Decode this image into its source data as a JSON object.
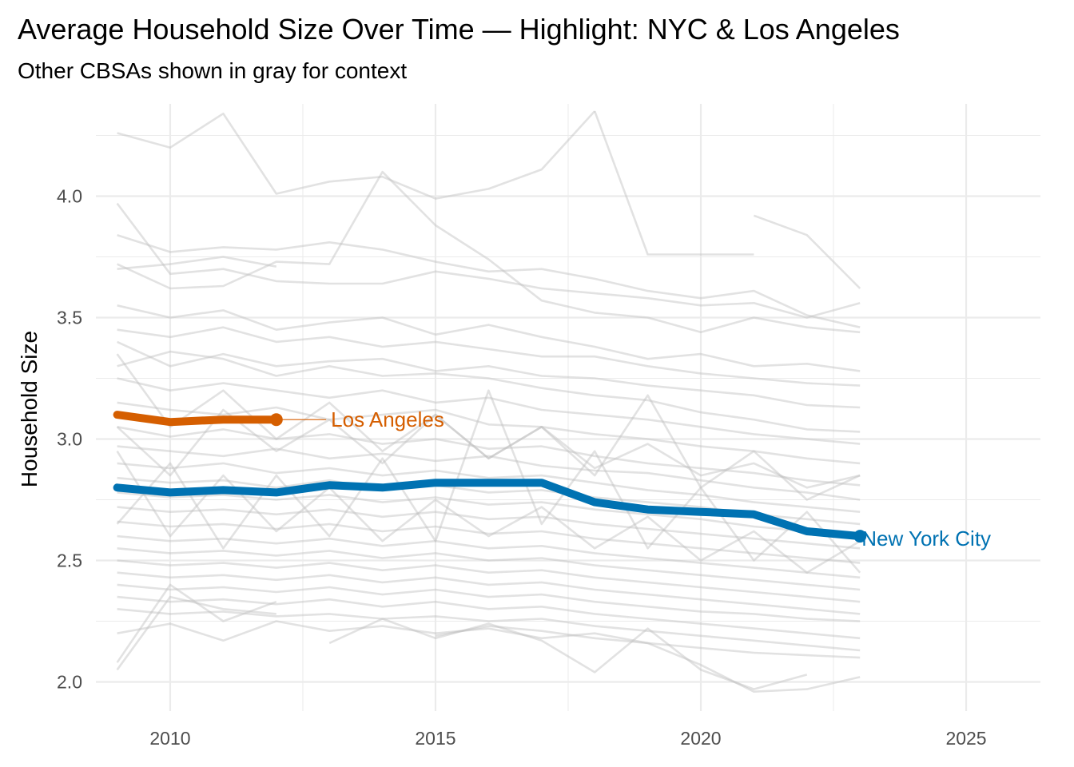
{
  "chart_data": {
    "type": "line",
    "title": "Average Household Size Over Time — Highlight: NYC & Los Angeles",
    "subtitle": "Other CBSAs shown in gray for context",
    "xlabel": "",
    "ylabel": "Household Size",
    "xlim": [
      2008.6,
      2026.4
    ],
    "ylim": [
      1.88,
      4.38
    ],
    "x_ticks": [
      2010,
      2015,
      2020,
      2025
    ],
    "y_ticks": [
      2.0,
      2.5,
      3.0,
      3.5,
      4.0
    ],
    "y_tick_labels": [
      "2.0",
      "2.5",
      "3.0",
      "3.5",
      "4.0"
    ],
    "grid": true,
    "legend": "none",
    "colors": {
      "background_series": "#BEBEBE",
      "new_york_city": "#0072B2",
      "los_angeles": "#D55E00",
      "grid": "#EBEBEB",
      "tick_text": "#4D4D4D"
    },
    "highlight_series": [
      {
        "name": "Los Angeles",
        "color": "#D55E00",
        "x": [
          2009,
          2010,
          2011,
          2012
        ],
        "values": [
          3.1,
          3.07,
          3.08,
          3.08
        ]
      },
      {
        "name": "New York City",
        "color": "#0072B2",
        "x": [
          2009,
          2010,
          2011,
          2012,
          2013,
          2014,
          2015,
          2016,
          2017,
          2018,
          2019,
          2020,
          2021,
          2022,
          2023
        ],
        "values": [
          2.8,
          2.78,
          2.79,
          2.78,
          2.81,
          2.8,
          2.82,
          2.82,
          2.82,
          2.74,
          2.71,
          2.7,
          2.69,
          2.62,
          2.6
        ]
      }
    ],
    "context_series": [
      {
        "x": [
          2009,
          2010,
          2011,
          2012,
          2013,
          2014,
          2015,
          2016,
          2017,
          2018
        ],
        "values": [
          4.26,
          4.2,
          4.34,
          4.01,
          4.06,
          4.08,
          3.99,
          4.03,
          4.11,
          4.35
        ]
      },
      {
        "x": [
          2018,
          2019,
          2020,
          2021
        ],
        "values": [
          4.35,
          3.76,
          3.76,
          3.76
        ]
      },
      {
        "x": [
          2021,
          2022,
          2023
        ],
        "values": [
          3.92,
          3.84,
          3.62
        ]
      },
      {
        "x": [
          2009,
          2010,
          2011,
          2012,
          2013,
          2014,
          2015,
          2016,
          2017,
          2018,
          2019,
          2020,
          2021,
          2022,
          2023
        ],
        "values": [
          3.97,
          3.68,
          3.7,
          3.65,
          3.64,
          3.64,
          3.69,
          3.66,
          3.62,
          3.6,
          3.58,
          3.55,
          3.56,
          3.5,
          3.56
        ]
      },
      {
        "x": [
          2009,
          2010,
          2011,
          2012,
          2013,
          2014,
          2015,
          2016,
          2017,
          2018,
          2019,
          2020,
          2021,
          2022,
          2023
        ],
        "values": [
          3.84,
          3.77,
          3.79,
          3.78,
          3.81,
          3.78,
          3.73,
          3.69,
          3.7,
          3.66,
          3.61,
          3.58,
          3.61,
          3.51,
          3.46
        ]
      },
      {
        "x": [
          2009,
          2010,
          2011,
          2012,
          2013,
          2014,
          2015,
          2016,
          2017,
          2018,
          2019,
          2020,
          2021,
          2022,
          2023
        ],
        "values": [
          3.72,
          3.62,
          3.63,
          3.73,
          3.72,
          4.1,
          3.88,
          3.74,
          3.57,
          3.52,
          3.5,
          3.44,
          3.5,
          3.46,
          3.44
        ]
      },
      {
        "x": [
          2009,
          2010,
          2011,
          2012
        ],
        "values": [
          3.7,
          3.72,
          3.75,
          3.71
        ]
      },
      {
        "x": [
          2009,
          2010,
          2011,
          2012,
          2013,
          2014,
          2015,
          2016,
          2017,
          2018,
          2019,
          2020,
          2021,
          2022,
          2023
        ],
        "values": [
          3.55,
          3.5,
          3.53,
          3.45,
          3.48,
          3.5,
          3.43,
          3.47,
          3.42,
          3.38,
          3.33,
          3.35,
          3.3,
          3.31,
          3.28
        ]
      },
      {
        "x": [
          2009,
          2010,
          2011,
          2012,
          2013,
          2014,
          2015,
          2016,
          2017,
          2018,
          2019,
          2020,
          2021,
          2022,
          2023
        ],
        "values": [
          3.45,
          3.42,
          3.46,
          3.4,
          3.42,
          3.38,
          3.4,
          3.37,
          3.34,
          3.34,
          3.3,
          3.27,
          3.25,
          3.23,
          3.22
        ]
      },
      {
        "x": [
          2009,
          2010,
          2011,
          2012,
          2013,
          2014,
          2015,
          2016,
          2017,
          2018,
          2019,
          2020,
          2021,
          2022,
          2023
        ],
        "values": [
          3.4,
          3.3,
          3.35,
          3.3,
          3.32,
          3.33,
          3.28,
          3.3,
          3.26,
          3.25,
          3.22,
          3.2,
          3.18,
          3.14,
          3.13
        ]
      },
      {
        "x": [
          2009,
          2010,
          2011,
          2012,
          2013,
          2014,
          2015,
          2016,
          2017,
          2018,
          2019,
          2020,
          2021,
          2022,
          2023
        ],
        "values": [
          3.3,
          3.36,
          3.33,
          3.26,
          3.3,
          3.26,
          3.27,
          3.25,
          3.21,
          3.18,
          3.16,
          3.11,
          3.08,
          3.04,
          3.03
        ]
      },
      {
        "x": [
          2009,
          2010,
          2011,
          2012,
          2013,
          2014,
          2015,
          2016,
          2017,
          2018,
          2019,
          2020,
          2021,
          2022,
          2023
        ],
        "values": [
          3.25,
          3.2,
          3.23,
          3.2,
          3.17,
          3.2,
          3.15,
          3.17,
          3.12,
          3.1,
          3.08,
          3.05,
          3.02,
          3.0,
          2.98
        ]
      },
      {
        "x": [
          2009,
          2010,
          2011,
          2012,
          2013,
          2014,
          2015,
          2016,
          2017,
          2018,
          2019,
          2020,
          2021,
          2022,
          2023
        ],
        "values": [
          3.15,
          3.12,
          3.1,
          3.13,
          3.08,
          3.1,
          3.12,
          3.06,
          3.05,
          3.02,
          3.0,
          2.97,
          2.95,
          2.92,
          2.9
        ]
      },
      {
        "x": [
          2009,
          2010,
          2011,
          2012,
          2013,
          2014,
          2015,
          2016,
          2017,
          2018,
          2019,
          2020,
          2021,
          2022,
          2023
        ],
        "values": [
          3.05,
          3.01,
          3.04,
          3.0,
          3.02,
          2.98,
          3.0,
          2.96,
          2.97,
          2.93,
          2.9,
          2.88,
          2.86,
          2.83,
          2.81
        ]
      },
      {
        "x": [
          2009,
          2010,
          2011,
          2012,
          2013,
          2014,
          2015,
          2016,
          2017,
          2018,
          2019,
          2020,
          2021,
          2022,
          2023
        ],
        "values": [
          2.97,
          2.95,
          2.93,
          2.96,
          2.92,
          2.94,
          2.91,
          2.93,
          2.89,
          2.87,
          2.86,
          2.83,
          2.8,
          2.78,
          2.75
        ]
      },
      {
        "x": [
          2009,
          2010,
          2011,
          2012,
          2013,
          2014,
          2015,
          2016,
          2017,
          2018,
          2019,
          2020,
          2021,
          2022,
          2023
        ],
        "values": [
          2.9,
          2.88,
          2.9,
          2.86,
          2.88,
          2.85,
          2.87,
          2.84,
          2.85,
          2.82,
          2.79,
          2.77,
          2.74,
          2.72,
          2.7
        ]
      },
      {
        "x": [
          2009,
          2010,
          2011,
          2012,
          2013,
          2014,
          2015,
          2016,
          2017,
          2018,
          2019,
          2020,
          2021,
          2022,
          2023
        ],
        "values": [
          2.84,
          2.82,
          2.83,
          2.8,
          2.83,
          2.79,
          2.81,
          2.78,
          2.79,
          2.76,
          2.74,
          2.72,
          2.69,
          2.67,
          2.65
        ]
      },
      {
        "x": [
          2009,
          2010,
          2011,
          2012,
          2013,
          2014,
          2015,
          2016,
          2017,
          2018,
          2019,
          2020,
          2021,
          2022,
          2023
        ],
        "values": [
          2.78,
          2.76,
          2.77,
          2.75,
          2.77,
          2.74,
          2.76,
          2.73,
          2.74,
          2.71,
          2.69,
          2.67,
          2.64,
          2.62,
          2.6
        ]
      },
      {
        "x": [
          2009,
          2010,
          2011,
          2012,
          2013,
          2014,
          2015,
          2016,
          2017,
          2018,
          2019,
          2020,
          2021,
          2022,
          2023
        ],
        "values": [
          2.72,
          2.7,
          2.71,
          2.69,
          2.71,
          2.68,
          2.7,
          2.67,
          2.68,
          2.65,
          2.63,
          2.61,
          2.59,
          2.57,
          2.55
        ]
      },
      {
        "x": [
          2009,
          2010,
          2011,
          2012,
          2013,
          2014,
          2015,
          2016,
          2017,
          2018,
          2019,
          2020,
          2021,
          2022,
          2023
        ],
        "values": [
          2.66,
          2.64,
          2.65,
          2.63,
          2.65,
          2.62,
          2.64,
          2.61,
          2.62,
          2.59,
          2.57,
          2.55,
          2.53,
          2.51,
          2.49
        ]
      },
      {
        "x": [
          2009,
          2010,
          2011,
          2012,
          2013,
          2014,
          2015,
          2016,
          2017,
          2018,
          2019,
          2020,
          2021,
          2022,
          2023
        ],
        "values": [
          2.6,
          2.58,
          2.59,
          2.57,
          2.59,
          2.56,
          2.58,
          2.55,
          2.56,
          2.53,
          2.51,
          2.49,
          2.47,
          2.45,
          2.43
        ]
      },
      {
        "x": [
          2009,
          2010,
          2011,
          2012,
          2013,
          2014,
          2015,
          2016,
          2017,
          2018,
          2019,
          2020,
          2021,
          2022,
          2023
        ],
        "values": [
          2.55,
          2.53,
          2.54,
          2.52,
          2.54,
          2.51,
          2.53,
          2.5,
          2.51,
          2.48,
          2.46,
          2.44,
          2.42,
          2.4,
          2.38
        ]
      },
      {
        "x": [
          2009,
          2010,
          2011,
          2012,
          2013,
          2014,
          2015,
          2016,
          2017,
          2018,
          2019,
          2020,
          2021,
          2022,
          2023
        ],
        "values": [
          2.5,
          2.48,
          2.49,
          2.47,
          2.49,
          2.46,
          2.48,
          2.45,
          2.46,
          2.43,
          2.41,
          2.39,
          2.37,
          2.35,
          2.33
        ]
      },
      {
        "x": [
          2009,
          2010,
          2011,
          2012,
          2013,
          2014,
          2015,
          2016,
          2017,
          2018,
          2019,
          2020,
          2021,
          2022,
          2023
        ],
        "values": [
          2.45,
          2.43,
          2.44,
          2.42,
          2.44,
          2.41,
          2.43,
          2.4,
          2.41,
          2.38,
          2.36,
          2.34,
          2.32,
          2.3,
          2.28
        ]
      },
      {
        "x": [
          2009,
          2010,
          2011,
          2012,
          2013,
          2014,
          2015,
          2016,
          2017,
          2018,
          2019,
          2020,
          2021,
          2022,
          2023
        ],
        "values": [
          2.4,
          2.38,
          2.39,
          2.37,
          2.39,
          2.36,
          2.38,
          2.35,
          2.36,
          2.33,
          2.31,
          2.29,
          2.28,
          2.26,
          2.25
        ]
      },
      {
        "x": [
          2009,
          2010,
          2011,
          2012,
          2013,
          2014,
          2015,
          2016,
          2017,
          2018,
          2019,
          2020,
          2021,
          2022,
          2023
        ],
        "values": [
          2.35,
          2.33,
          2.34,
          2.32,
          2.34,
          2.31,
          2.33,
          2.3,
          2.31,
          2.28,
          2.26,
          2.24,
          2.22,
          2.2,
          2.18
        ]
      },
      {
        "x": [
          2009,
          2010,
          2011,
          2012,
          2013,
          2014,
          2015,
          2016,
          2017,
          2018,
          2019,
          2020,
          2021,
          2022,
          2023
        ],
        "values": [
          2.3,
          2.28,
          2.29,
          2.27,
          2.28,
          2.26,
          2.27,
          2.25,
          2.26,
          2.23,
          2.21,
          2.19,
          2.17,
          2.15,
          2.13
        ]
      },
      {
        "x": [
          2009,
          2010,
          2011,
          2012,
          2013,
          2014,
          2015,
          2016,
          2017,
          2018,
          2019,
          2020,
          2021,
          2022,
          2023
        ],
        "values": [
          2.2,
          2.24,
          2.17,
          2.25,
          2.21,
          2.23,
          2.2,
          2.22,
          2.18,
          2.2,
          2.16,
          2.14,
          2.12,
          2.11,
          2.1
        ]
      },
      {
        "x": [
          2009,
          2010,
          2011,
          2012
        ],
        "values": [
          2.05,
          2.35,
          2.3,
          2.28
        ]
      },
      {
        "x": [
          2009,
          2010,
          2011,
          2012
        ],
        "values": [
          2.08,
          2.4,
          2.25,
          2.33
        ]
      },
      {
        "x": [
          2013,
          2014,
          2015,
          2016,
          2017,
          2018,
          2019,
          2020,
          2021,
          2022
        ],
        "values": [
          2.16,
          2.26,
          2.18,
          2.24,
          2.17,
          2.04,
          2.22,
          2.05,
          1.97,
          2.03
        ]
      },
      {
        "x": [
          2015,
          2016,
          2017,
          2018,
          2019,
          2020,
          2021,
          2022,
          2023
        ],
        "values": [
          2.19,
          2.23,
          2.21,
          2.18,
          2.16,
          2.07,
          1.96,
          1.97,
          2.02
        ]
      },
      {
        "x": [
          2009,
          2010,
          2011,
          2012,
          2013,
          2014,
          2015,
          2016,
          2017,
          2018,
          2019,
          2020,
          2021,
          2022,
          2023
        ],
        "values": [
          3.05,
          2.85,
          3.12,
          2.95,
          3.08,
          2.9,
          3.1,
          2.92,
          3.05,
          2.85,
          3.18,
          2.8,
          2.95,
          2.75,
          2.85
        ]
      },
      {
        "x": [
          2009,
          2010,
          2011,
          2012,
          2013,
          2014,
          2015,
          2016,
          2017,
          2018,
          2019,
          2020,
          2021,
          2022,
          2023
        ],
        "values": [
          2.65,
          2.9,
          2.55,
          2.85,
          2.6,
          2.92,
          2.58,
          3.2,
          2.65,
          2.95,
          2.55,
          2.8,
          2.5,
          2.7,
          2.45
        ]
      },
      {
        "x": [
          2009,
          2010,
          2011,
          2012,
          2013,
          2014,
          2015,
          2016,
          2017,
          2018,
          2019,
          2020,
          2021,
          2022,
          2023
        ],
        "values": [
          3.35,
          3.05,
          3.2,
          3.0,
          3.15,
          2.95,
          3.1,
          2.92,
          3.05,
          2.88,
          2.98,
          2.85,
          2.9,
          2.8,
          2.85
        ]
      },
      {
        "x": [
          2009,
          2010,
          2011,
          2012,
          2013,
          2014,
          2015,
          2016,
          2017,
          2018,
          2019,
          2020,
          2021,
          2022,
          2023
        ],
        "values": [
          2.95,
          2.6,
          2.85,
          2.62,
          2.8,
          2.58,
          2.75,
          2.6,
          2.72,
          2.55,
          2.68,
          2.5,
          2.62,
          2.45,
          2.58
        ]
      }
    ],
    "annotations": [
      {
        "text": "Los Angeles",
        "color": "#D55E00",
        "x": 2013.0,
        "y": 3.08
      },
      {
        "text": "New York City",
        "color": "#0072B2",
        "x": 2023.0,
        "y": 2.59
      }
    ]
  }
}
